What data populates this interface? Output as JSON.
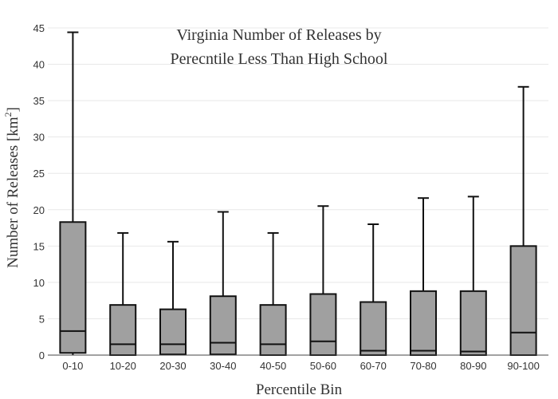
{
  "chart_data": {
    "type": "box",
    "title_lines": [
      "Virginia Number of Releases by",
      "Perecntile Less Than High School"
    ],
    "xlabel": "Percentile Bin",
    "ylabel_main": "Number of Releases  [km",
    "ylabel_sup": "2",
    "ylabel_end": "]",
    "ylim": [
      0,
      45
    ],
    "yticks": [
      "0",
      "5",
      "10",
      "15",
      "20",
      "25",
      "30",
      "35",
      "40",
      "45"
    ],
    "grid": true,
    "categories": [
      "0-10",
      "10-20",
      "20-30",
      "30-40",
      "40-50",
      "50-60",
      "60-70",
      "70-80",
      "80-90",
      "90-100"
    ],
    "boxes": [
      {
        "min": 0,
        "q1": 0.3,
        "median": 3.3,
        "q3": 18.3,
        "max": 44.4
      },
      {
        "min": 0,
        "q1": 0,
        "median": 1.5,
        "q3": 6.9,
        "max": 16.8
      },
      {
        "min": 0,
        "q1": 0.1,
        "median": 1.5,
        "q3": 6.3,
        "max": 15.6
      },
      {
        "min": 0,
        "q1": 0.1,
        "median": 1.7,
        "q3": 8.1,
        "max": 19.7
      },
      {
        "min": 0,
        "q1": 0,
        "median": 1.5,
        "q3": 6.9,
        "max": 16.8
      },
      {
        "min": 0,
        "q1": 0,
        "median": 1.9,
        "q3": 8.4,
        "max": 20.5
      },
      {
        "min": 0,
        "q1": 0,
        "median": 0.6,
        "q3": 7.3,
        "max": 18.0
      },
      {
        "min": 0,
        "q1": 0,
        "median": 0.6,
        "q3": 8.8,
        "max": 21.6
      },
      {
        "min": 0,
        "q1": 0,
        "median": 0.5,
        "q3": 8.8,
        "max": 21.8
      },
      {
        "min": 0,
        "q1": 0,
        "median": 3.1,
        "q3": 15.0,
        "max": 36.9
      }
    ]
  }
}
